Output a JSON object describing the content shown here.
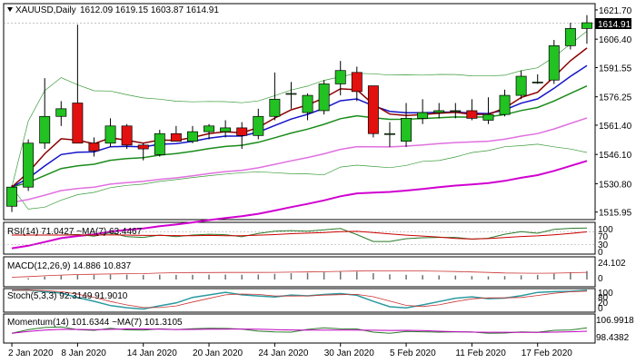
{
  "header": {
    "symbol": "XAUUSD,Daily",
    "ohlc": "1612.09 1619.15 1603.87 1614.91"
  },
  "price_axis": {
    "labels": [
      "1621.70",
      "1606.40",
      "1591.55",
      "1576.25",
      "1561.40",
      "1546.10",
      "1530.80",
      "1515.95"
    ],
    "current_price": "1614.91"
  },
  "subwindows": {
    "rsi": {
      "title": "RSI(14) 71.0427  ~MA(7) 63.4467",
      "levels": [
        "100",
        "70",
        "30",
        "0"
      ]
    },
    "macd": {
      "title": "MACD(12,26,9) 14.886 10.837",
      "labels": [
        "24.102",
        "0"
      ]
    },
    "stoch": {
      "title": "Stoch(5,3,3) 92.3149 91.9010",
      "labels": [
        "100",
        "80",
        "20",
        "0"
      ]
    },
    "momentum": {
      "title": "Momentum(14) 101.6344  ~MA(7) 101.3105",
      "labels": [
        "106.9918",
        "98.4382"
      ]
    }
  },
  "time_axis": {
    "labels": [
      "2 Jan 2020",
      "8 Jan 2020",
      "14 Jan 2020",
      "20 Jan 2020",
      "24 Jan 2020",
      "30 Jan 2020",
      "5 Feb 2020",
      "11 Feb 2020",
      "17 Feb 2020"
    ]
  },
  "colors": {
    "bull": "#21c221",
    "bear": "#e31010",
    "ema_dark": "#8b0000",
    "ema_blue": "#1414c8",
    "ema_green": "#1a8c1a",
    "ema_violet": "#e070e0",
    "ema_magenta": "#d000d0",
    "bollinger": "#3a9b3a",
    "rsi_line": "#2a7a2a",
    "rsi_ma": "#cc0000",
    "stoch_main": "#2a9aa0",
    "stoch_signal": "#cc3333",
    "momentum_line": "#2a7a2a",
    "momentum_ma": "#c000c0"
  },
  "chart_data": {
    "type": "candlestick",
    "symbol": "XAUUSD",
    "timeframe": "Daily",
    "x": [
      "2 Jan 2020",
      "3 Jan",
      "6 Jan",
      "7 Jan",
      "8 Jan",
      "9 Jan",
      "10 Jan",
      "13 Jan",
      "14 Jan",
      "15 Jan",
      "16 Jan",
      "17 Jan",
      "20 Jan",
      "21 Jan",
      "22 Jan",
      "23 Jan",
      "24 Jan",
      "27 Jan",
      "28 Jan",
      "29 Jan",
      "30 Jan",
      "31 Jan",
      "3 Feb",
      "4 Feb",
      "5 Feb",
      "6 Feb",
      "7 Feb",
      "10 Feb",
      "11 Feb",
      "12 Feb",
      "13 Feb",
      "14 Feb",
      "17 Feb",
      "18 Feb",
      "19 Feb",
      "20 Feb"
    ],
    "open": [
      1519,
      1529,
      1552,
      1566,
      1573,
      1552,
      1552,
      1561,
      1551,
      1546,
      1557,
      1553,
      1558,
      1558,
      1560,
      1556,
      1566,
      1578,
      1568,
      1569,
      1583,
      1589,
      1582,
      1557,
      1553,
      1565,
      1568,
      1569,
      1569,
      1564,
      1567,
      1577,
      1584,
      1585,
      1603,
      1612
    ],
    "high": [
      1530,
      1554,
      1586,
      1574,
      1614,
      1555,
      1565,
      1562,
      1552,
      1559,
      1561,
      1561,
      1562,
      1564,
      1563,
      1570,
      1589,
      1584,
      1578,
      1585,
      1595,
      1592,
      1582,
      1563,
      1573,
      1575,
      1573,
      1573,
      1575,
      1576,
      1580,
      1590,
      1588,
      1606,
      1615,
      1619
    ],
    "low": [
      1516,
      1527,
      1549,
      1561,
      1552,
      1545,
      1550,
      1549,
      1543,
      1545,
      1553,
      1552,
      1554,
      1555,
      1549,
      1554,
      1564,
      1570,
      1564,
      1567,
      1577,
      1574,
      1555,
      1550,
      1550,
      1562,
      1565,
      1565,
      1564,
      1562,
      1566,
      1575,
      1583,
      1583,
      1601,
      1604
    ],
    "close": [
      1529,
      1552,
      1566,
      1570,
      1552,
      1548,
      1561,
      1551,
      1549,
      1557,
      1553,
      1558,
      1561,
      1560,
      1556,
      1566,
      1575,
      1578,
      1577,
      1583,
      1590,
      1579,
      1557,
      1557,
      1565,
      1568,
      1569,
      1569,
      1565,
      1567,
      1577,
      1587,
      1584,
      1603,
      1612,
      1615
    ],
    "ylim": [
      1512,
      1625
    ]
  }
}
